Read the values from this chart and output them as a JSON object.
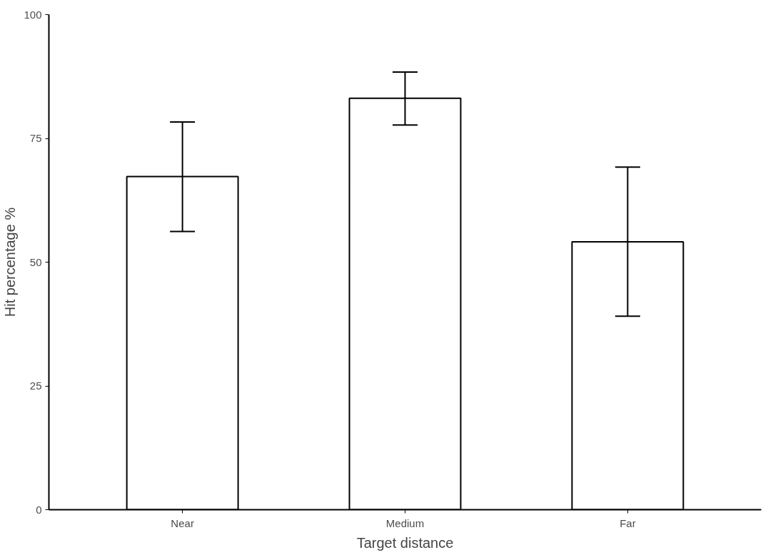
{
  "chart_data": {
    "type": "bar",
    "xlabel": "Target distance",
    "ylabel": "Hit percentage %",
    "categories": [
      "Near",
      "Medium",
      "Far"
    ],
    "values": [
      67.3,
      83.1,
      54.1
    ],
    "errors": [
      [
        56.2,
        78.3
      ],
      [
        77.7,
        88.4
      ],
      [
        39.1,
        69.2
      ]
    ],
    "color": "#ffffff",
    "ylim": [
      0,
      100
    ],
    "yticks": [
      0,
      25,
      50,
      75,
      100
    ],
    "grid": false
  }
}
